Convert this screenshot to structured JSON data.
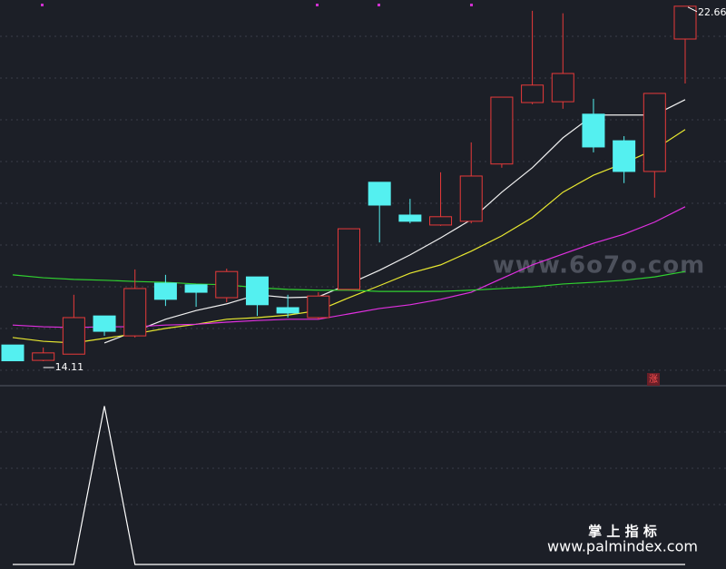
{
  "chart_data": [
    {
      "type": "candlestick",
      "open": [
        14.5,
        14.13,
        14.28,
        15.2,
        14.72,
        15.99,
        15.95,
        15.64,
        16.14,
        15.4,
        15.16,
        15.84,
        18.42,
        17.63,
        17.39,
        17.48,
        18.86,
        20.34,
        20.36,
        20.06,
        19.42,
        18.68,
        21.87
      ],
      "high": [
        14.5,
        14.44,
        15.71,
        15.2,
        16.32,
        16.19,
        15.95,
        16.34,
        16.14,
        15.71,
        15.77,
        17.3,
        18.42,
        18.02,
        18.66,
        19.38,
        20.47,
        22.55,
        22.49,
        20.43,
        19.53,
        20.56,
        22.66
      ],
      "low": [
        14.12,
        14.11,
        14.28,
        14.72,
        14.68,
        15.44,
        15.42,
        15.53,
        15.2,
        15.16,
        15.12,
        15.82,
        16.97,
        17.43,
        17.37,
        17.43,
        18.77,
        20.3,
        20.19,
        19.14,
        18.4,
        18.05,
        20.8
      ],
      "close": [
        14.12,
        14.31,
        15.16,
        14.83,
        15.86,
        15.6,
        15.77,
        16.27,
        15.47,
        15.27,
        15.68,
        17.3,
        17.87,
        17.48,
        17.59,
        18.57,
        20.47,
        20.76,
        21.04,
        19.27,
        18.68,
        20.56,
        22.66
      ],
      "up_color": "#e83a3a",
      "down_color": "#54f0f0",
      "ylim": [
        13.52,
        22.81
      ],
      "series": [
        {
          "color": "#f0f0f0",
          "values": [
            null,
            null,
            null,
            14.55,
            14.83,
            15.12,
            15.33,
            15.49,
            15.71,
            15.64,
            15.66,
            15.97,
            16.3,
            16.67,
            17.08,
            17.52,
            18.18,
            18.77,
            19.49,
            20.04,
            20.04,
            20.04,
            20.41
          ]
        },
        {
          "color": "#e8e830",
          "values": [
            14.68,
            14.59,
            14.55,
            14.66,
            14.77,
            14.9,
            15.0,
            15.12,
            15.16,
            15.22,
            15.33,
            15.64,
            15.93,
            16.23,
            16.43,
            16.76,
            17.13,
            17.57,
            18.18,
            18.59,
            18.88,
            19.21,
            19.69
          ]
        },
        {
          "color": "#e030e0",
          "values": [
            14.98,
            14.94,
            14.92,
            14.94,
            14.94,
            14.98,
            15.0,
            15.05,
            15.09,
            15.12,
            15.12,
            15.25,
            15.38,
            15.47,
            15.6,
            15.77,
            16.1,
            16.43,
            16.69,
            16.95,
            17.17,
            17.46,
            17.83
          ]
        },
        {
          "color": "#30d030",
          "values": [
            16.19,
            16.12,
            16.08,
            16.06,
            16.03,
            16.01,
            15.97,
            15.95,
            15.88,
            15.84,
            15.82,
            15.82,
            15.79,
            15.79,
            15.79,
            15.82,
            15.86,
            15.9,
            15.97,
            16.01,
            16.06,
            16.14,
            16.27
          ]
        }
      ],
      "annotations": [
        {
          "text": "22.66"
        },
        {
          "text": "14.11"
        },
        {
          "text": "涨"
        }
      ]
    },
    {
      "type": "line",
      "color": "#ffffff",
      "ylim": [
        0,
        1.1
      ],
      "values": [
        0,
        0,
        0,
        1,
        0,
        0,
        0,
        0,
        0,
        0,
        0,
        0,
        0,
        0,
        0,
        0,
        0,
        0,
        0,
        0,
        0,
        0,
        0
      ]
    }
  ],
  "watermark": "www.6o7o.com",
  "footer": {
    "title": "掌 上 指 标",
    "url": "www.palmindex.com"
  }
}
